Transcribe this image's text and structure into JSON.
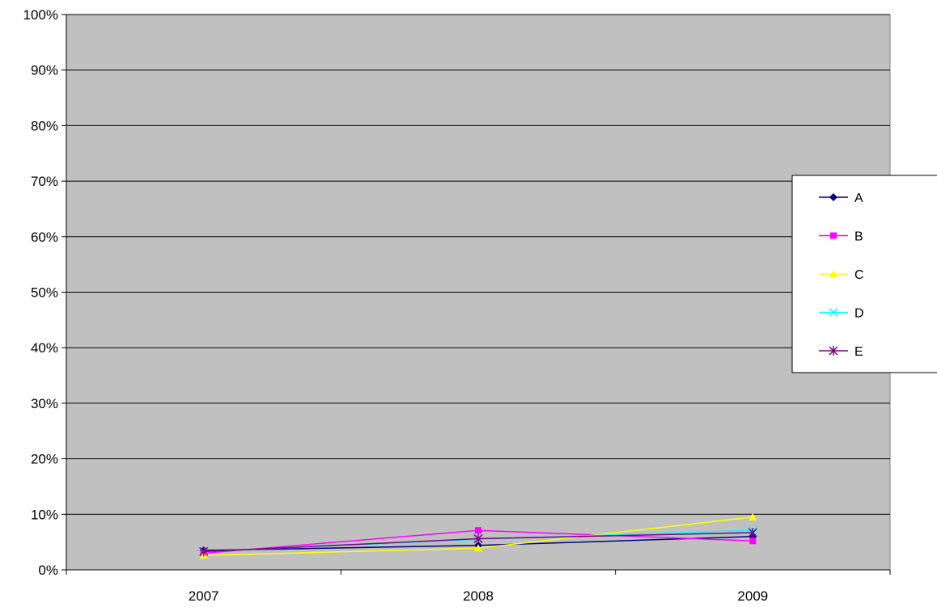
{
  "chart_data": {
    "type": "line",
    "categories": [
      "2007",
      "2008",
      "2009"
    ],
    "ylim": [
      0,
      1
    ],
    "yticks": [
      0,
      0.1,
      0.2,
      0.3,
      0.4,
      0.5,
      0.6,
      0.7,
      0.8,
      0.9,
      1.0
    ],
    "ytick_labels": [
      "0%",
      "10%",
      "20%",
      "30%",
      "40%",
      "50%",
      "60%",
      "70%",
      "80%",
      "90%",
      "100%"
    ],
    "title": "",
    "xlabel": "",
    "ylabel": "",
    "grid": "horizontal",
    "legend_position": "right",
    "plot_background": "#c0c0c0",
    "series": [
      {
        "name": "A",
        "color": "#000080",
        "marker": "diamond",
        "values": [
          0.035,
          0.044,
          0.06
        ]
      },
      {
        "name": "B",
        "color": "#ff00ff",
        "marker": "square",
        "values": [
          0.03,
          0.071,
          0.052
        ]
      },
      {
        "name": "C",
        "color": "#ffff00",
        "marker": "triangle",
        "values": [
          0.026,
          0.039,
          0.095
        ]
      },
      {
        "name": "D",
        "color": "#00ffff",
        "marker": "x",
        "values": [
          0.033,
          0.055,
          0.071
        ]
      },
      {
        "name": "E",
        "color": "#800080",
        "marker": "star",
        "values": [
          0.033,
          0.056,
          0.067
        ]
      }
    ]
  }
}
